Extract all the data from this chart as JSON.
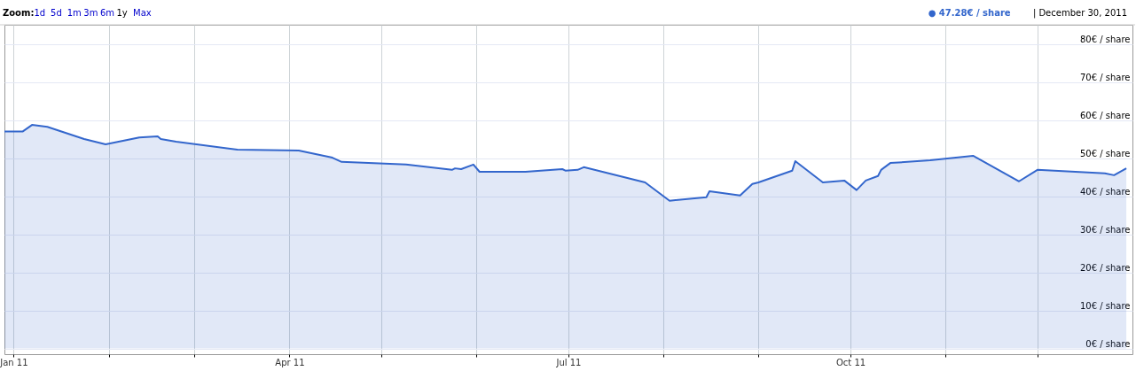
{
  "chart_data": {
    "type": "area",
    "annotations": [
      "Zoom:",
      "1d",
      "5d",
      "1m",
      "3m",
      "6m",
      "1y",
      "Max",
      "● 47.28€ / share",
      "| December 30, 2011"
    ],
    "x": [
      "2010-12-29",
      "2011-01-04",
      "2011-01-07",
      "2011-01-12",
      "2011-01-24",
      "2011-01-31",
      "2011-02-11",
      "2011-02-17",
      "2011-02-18",
      "2011-02-23",
      "2011-03-15",
      "2011-04-04",
      "2011-04-15",
      "2011-04-18",
      "2011-05-09",
      "2011-05-24",
      "2011-05-25",
      "2011-05-27",
      "2011-05-31",
      "2011-06-02",
      "2011-06-17",
      "2011-06-29",
      "2011-06-30",
      "2011-07-04",
      "2011-07-06",
      "2011-07-26",
      "2011-08-03",
      "2011-08-15",
      "2011-08-16",
      "2011-08-26",
      "2011-08-30",
      "2011-09-01",
      "2011-09-12",
      "2011-09-13",
      "2011-09-22",
      "2011-09-29",
      "2011-10-03",
      "2011-10-06",
      "2011-10-10",
      "2011-10-11",
      "2011-10-14",
      "2011-10-27",
      "2011-11-10",
      "2011-11-25",
      "2011-12-01",
      "2011-12-23",
      "2011-12-26",
      "2011-12-30"
    ],
    "series": [
      {
        "color": "#3366cc",
        "values": [
          57.0,
          57.0,
          58.7,
          58.2,
          55.0,
          53.6,
          55.4,
          55.7,
          55.0,
          54.3,
          52.2,
          52.0,
          50.1,
          49.0,
          48.3,
          46.9,
          47.3,
          47.1,
          48.3,
          46.4,
          46.4,
          47.1,
          46.7,
          46.9,
          47.6,
          43.6,
          38.8,
          39.7,
          41.3,
          40.2,
          43.2,
          43.6,
          46.7,
          49.2,
          43.6,
          44.1,
          41.6,
          44.1,
          45.3,
          46.9,
          48.7,
          49.4,
          50.6,
          43.9,
          46.9,
          46.0,
          45.5,
          47.28
        ]
      }
    ],
    "xlim": [
      "2010-12-29",
      "2012-01-01"
    ],
    "xticks": [
      {
        "value": "2011-01-01",
        "label": "Jan 11"
      },
      {
        "value": "2011-02-01",
        "label": null
      },
      {
        "value": "2011-03-01",
        "label": null
      },
      {
        "value": "2011-04-01",
        "label": "Apr 11"
      },
      {
        "value": "2011-05-01",
        "label": null
      },
      {
        "value": "2011-06-01",
        "label": null
      },
      {
        "value": "2011-07-01",
        "label": "Jul 11"
      },
      {
        "value": "2011-08-01",
        "label": null
      },
      {
        "value": "2011-09-01",
        "label": null
      },
      {
        "value": "2011-10-01",
        "label": "Oct 11"
      },
      {
        "value": "2011-11-01",
        "label": null
      },
      {
        "value": "2011-12-01",
        "label": null
      }
    ],
    "ylim": [
      -1.5,
      85
    ],
    "yticks": [
      {
        "value": 0,
        "label": "0€ / share"
      },
      {
        "value": 10,
        "label": "10€ / share"
      },
      {
        "value": 20,
        "label": "20€ / share"
      },
      {
        "value": 30,
        "label": "30€ / share"
      },
      {
        "value": 40,
        "label": "40€ / share"
      },
      {
        "value": 50,
        "label": "50€ / share"
      },
      {
        "value": 60,
        "label": "60€ / share"
      },
      {
        "value": 70,
        "label": "70€ / share"
      },
      {
        "value": 80,
        "label": "80€ / share"
      }
    ],
    "grid": true
  }
}
